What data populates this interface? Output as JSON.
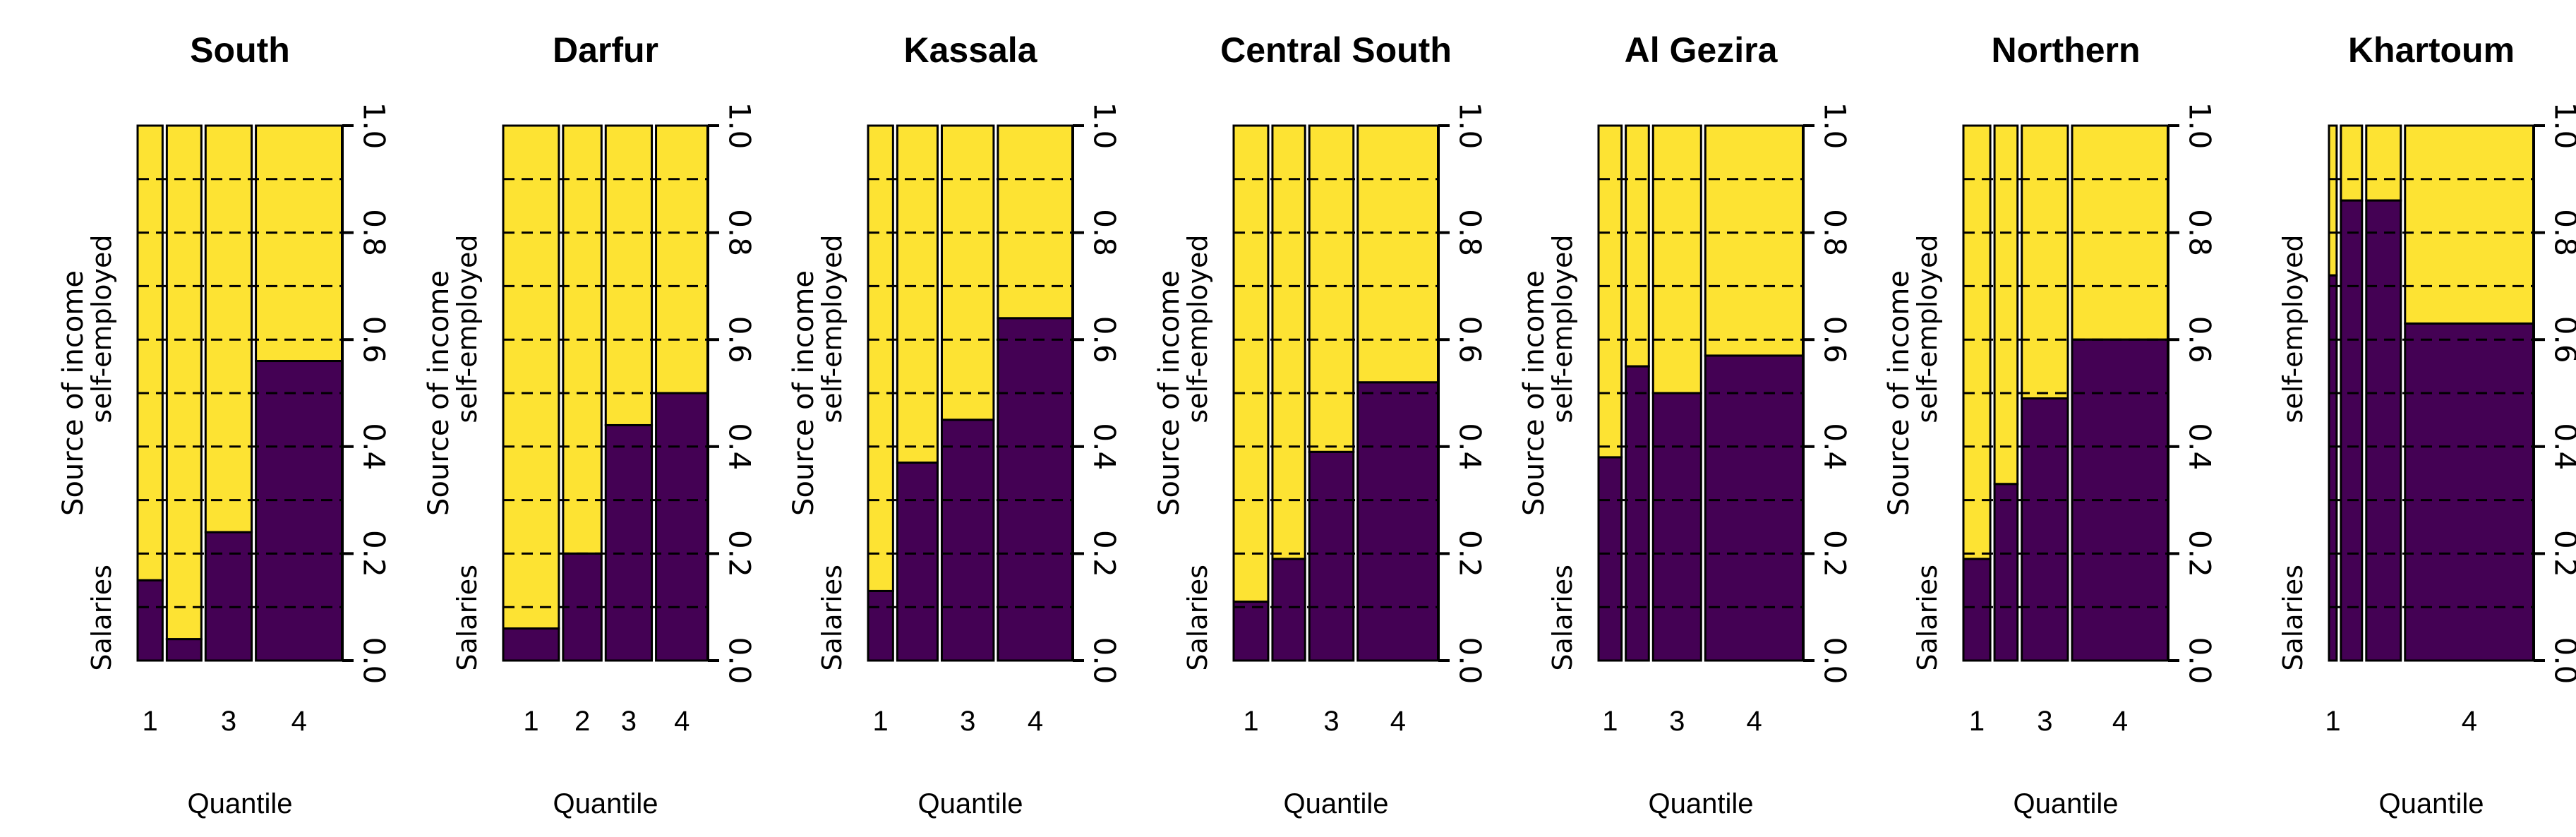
{
  "colors": {
    "salaries": "#440154",
    "self_employed": "#FDE333",
    "outline": "#000000",
    "gridline": "#000000"
  },
  "chart_data": [
    {
      "type": "mosaic",
      "title": "South",
      "xlabel": "Quantile",
      "ylabel": "Source of income",
      "show_ylabel": true,
      "categories": [
        "Salaries",
        "self-employed"
      ],
      "x_tick_labels": [
        "1",
        "",
        "3",
        "4"
      ],
      "widths": [
        0.13,
        0.18,
        0.24,
        0.45
      ],
      "salaries_share": [
        0.15,
        0.04,
        0.24,
        0.56
      ],
      "ylim": [
        0,
        1
      ],
      "yticks": [
        "0.0",
        "0.2",
        "0.4",
        "0.6",
        "0.8",
        "1.0"
      ],
      "grid": "dashed"
    },
    {
      "type": "mosaic",
      "title": "Darfur",
      "xlabel": "Quantile",
      "ylabel": "Source of income",
      "show_ylabel": true,
      "categories": [
        "Salaries",
        "self-employed"
      ],
      "x_tick_labels": [
        "1",
        "2",
        "3",
        "4"
      ],
      "widths": [
        0.29,
        0.2,
        0.24,
        0.27
      ],
      "salaries_share": [
        0.06,
        0.2,
        0.44,
        0.5
      ],
      "ylim": [
        0,
        1
      ],
      "yticks": [
        "0.0",
        "0.2",
        "0.4",
        "0.6",
        "0.8",
        "1.0"
      ],
      "grid": "dashed"
    },
    {
      "type": "mosaic",
      "title": "Kassala",
      "xlabel": "Quantile",
      "ylabel": "Source of income",
      "show_ylabel": true,
      "categories": [
        "Salaries",
        "self-employed"
      ],
      "x_tick_labels": [
        "1",
        "",
        "3",
        "4"
      ],
      "widths": [
        0.13,
        0.21,
        0.27,
        0.39
      ],
      "salaries_share": [
        0.13,
        0.37,
        0.45,
        0.64
      ],
      "ylim": [
        0,
        1
      ],
      "yticks": [
        "0.0",
        "0.2",
        "0.4",
        "0.6",
        "0.8",
        "1.0"
      ],
      "grid": "dashed"
    },
    {
      "type": "mosaic",
      "title": "Central  South",
      "xlabel": "Quantile",
      "ylabel": "Source of income",
      "show_ylabel": true,
      "categories": [
        "Salaries",
        "self-employed"
      ],
      "x_tick_labels": [
        "1",
        "",
        "3",
        "4"
      ],
      "widths": [
        0.18,
        0.17,
        0.23,
        0.42
      ],
      "salaries_share": [
        0.11,
        0.19,
        0.39,
        0.52
      ],
      "ylim": [
        0,
        1
      ],
      "yticks": [
        "0.0",
        "0.2",
        "0.4",
        "0.6",
        "0.8",
        "1.0"
      ],
      "grid": "dashed"
    },
    {
      "type": "mosaic",
      "title": "Al Gezira",
      "xlabel": "Quantile",
      "ylabel": "Source of income",
      "show_ylabel": true,
      "categories": [
        "Salaries",
        "self-employed"
      ],
      "x_tick_labels": [
        "1",
        "",
        "3",
        "4"
      ],
      "widths": [
        0.12,
        0.12,
        0.25,
        0.51
      ],
      "salaries_share": [
        0.38,
        0.55,
        0.5,
        0.57
      ],
      "ylim": [
        0,
        1
      ],
      "yticks": [
        "0.0",
        "0.2",
        "0.4",
        "0.6",
        "0.8",
        "1.0"
      ],
      "grid": "dashed"
    },
    {
      "type": "mosaic",
      "title": "Northern",
      "xlabel": "Quantile",
      "ylabel": "Source of income",
      "show_ylabel": true,
      "categories": [
        "Salaries",
        "self-employed"
      ],
      "x_tick_labels": [
        "1",
        "",
        "3",
        "4"
      ],
      "widths": [
        0.14,
        0.12,
        0.24,
        0.5
      ],
      "salaries_share": [
        0.19,
        0.33,
        0.49,
        0.6
      ],
      "ylim": [
        0,
        1
      ],
      "yticks": [
        "0.0",
        "0.2",
        "0.4",
        "0.6",
        "0.8",
        "1.0"
      ],
      "grid": "dashed"
    },
    {
      "type": "mosaic",
      "title": "Khartoum",
      "xlabel": "Quantile",
      "ylabel": "",
      "show_ylabel": false,
      "categories": [
        "Salaries",
        "self-employed"
      ],
      "x_tick_labels": [
        "1",
        "",
        "",
        "4"
      ],
      "widths": [
        0.04,
        0.11,
        0.18,
        0.67
      ],
      "salaries_share": [
        0.72,
        0.86,
        0.86,
        0.63
      ],
      "ylim": [
        0,
        1
      ],
      "yticks": [
        "0.0",
        "0.2",
        "0.4",
        "0.6",
        "0.8",
        "1.0"
      ],
      "grid": "dashed"
    }
  ]
}
